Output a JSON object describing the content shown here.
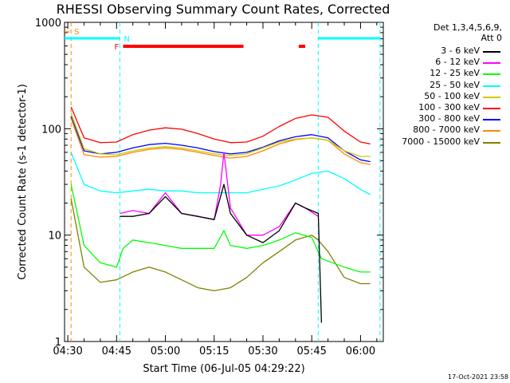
{
  "title": "RHESSI Observing Summary Count Rates, Corrected",
  "timestamp": "17-Oct-2021 23:58",
  "legend_header": [
    "Det 1,3,4,5,6,9,",
    "Att 0"
  ],
  "legend": [
    {
      "label": "3 - 6 keV",
      "color": "#000000"
    },
    {
      "label": "6 - 12 keV",
      "color": "#ff00ff"
    },
    {
      "label": "12 - 25 keV",
      "color": "#00ff00"
    },
    {
      "label": "25 - 50 keV",
      "color": "#00ffff"
    },
    {
      "label": "50 - 100 keV",
      "color": "#cccc00"
    },
    {
      "label": "100 - 300 keV",
      "color": "#ff0000"
    },
    {
      "label": "300 - 800 keV",
      "color": "#0000ff"
    },
    {
      "label": "800 - 7000 keV",
      "color": "#ff8800"
    },
    {
      "label": "7000 - 15000 keV",
      "color": "#808000"
    }
  ],
  "chart_data": {
    "type": "line",
    "title": "RHESSI Observing Summary Count Rates, Corrected",
    "xlabel": "Start Time (06-Jul-05 04:29:22)",
    "ylabel": "Corrected Count Rate (s-1 detector-1)",
    "yscale": "log",
    "ylim": [
      1,
      1000
    ],
    "xlim": [
      "04:29",
      "06:07"
    ],
    "x_ticks": [
      "04:30",
      "04:45",
      "05:00",
      "05:15",
      "05:30",
      "05:45",
      "06:00"
    ],
    "y_ticks": [
      "1",
      "10",
      "100",
      "1000"
    ],
    "annotations": {
      "S": {
        "label": "S",
        "color": "#ff8800",
        "time": "04:31"
      },
      "N": {
        "label": "N",
        "color": "#00ffff",
        "intervals": [
          [
            "04:29",
            "04:46"
          ],
          [
            "05:47",
            "06:06"
          ]
        ]
      },
      "F": {
        "label": "F",
        "color": "#ff0000",
        "intervals": [
          [
            "04:47",
            "05:24"
          ],
          [
            "05:41",
            "05:43"
          ]
        ]
      }
    },
    "series": [
      {
        "name": "3 - 6 keV",
        "color": "#000000",
        "x": [
          "04:46",
          "04:50",
          "04:55",
          "05:00",
          "05:05",
          "05:10",
          "05:15",
          "05:18",
          "05:20",
          "05:25",
          "05:30",
          "05:35",
          "05:40",
          "05:43",
          "05:47",
          "05:48"
        ],
        "y": [
          15,
          15,
          16,
          23,
          16,
          15,
          14,
          30,
          16,
          10,
          8.5,
          11,
          20,
          18,
          16,
          1.5
        ]
      },
      {
        "name": "6 - 12 keV",
        "color": "#ff00ff",
        "x": [
          "04:46",
          "04:50",
          "04:55",
          "05:00",
          "05:05",
          "05:10",
          "05:15",
          "05:17",
          "05:18",
          "05:20",
          "05:25",
          "05:30",
          "05:35",
          "05:40",
          "05:43",
          "05:47"
        ],
        "y": [
          16,
          17,
          16,
          25,
          16,
          15,
          14,
          30,
          60,
          18,
          10,
          10,
          12,
          20,
          18,
          15
        ]
      },
      {
        "name": "12 - 25 keV",
        "color": "#00ff00",
        "x": [
          "04:31",
          "04:35",
          "04:40",
          "04:45",
          "04:47",
          "04:50",
          "04:55",
          "05:00",
          "05:05",
          "05:10",
          "05:15",
          "05:18",
          "05:20",
          "05:25",
          "05:30",
          "05:35",
          "05:40",
          "05:45",
          "05:48",
          "05:55",
          "06:00",
          "06:03"
        ],
        "y": [
          30,
          8,
          5.5,
          5,
          7.5,
          9,
          8.5,
          8,
          7.5,
          7.5,
          7.5,
          11,
          8,
          7.5,
          8,
          9,
          10.5,
          9.5,
          6,
          5,
          4.5,
          4.5
        ]
      },
      {
        "name": "25 - 50 keV",
        "color": "#00ffff",
        "x": [
          "04:31",
          "04:35",
          "04:40",
          "04:45",
          "04:50",
          "04:55",
          "05:00",
          "05:05",
          "05:10",
          "05:15",
          "05:20",
          "05:25",
          "05:30",
          "05:35",
          "05:40",
          "05:45",
          "05:50",
          "05:55",
          "06:00",
          "06:03"
        ],
        "y": [
          60,
          30,
          26,
          25,
          26,
          27,
          26,
          26,
          25,
          25,
          25,
          25,
          27,
          29,
          33,
          38,
          40,
          34,
          27,
          24
        ]
      },
      {
        "name": "50 - 100 keV",
        "color": "#cccc00",
        "x": [
          "04:31",
          "04:35",
          "04:40",
          "04:45",
          "04:50",
          "04:55",
          "05:00",
          "05:05",
          "05:10",
          "05:15",
          "05:20",
          "05:25",
          "05:30",
          "05:35",
          "05:40",
          "05:45",
          "05:50",
          "05:55",
          "06:00",
          "06:03"
        ],
        "y": [
          140,
          65,
          58,
          57,
          62,
          66,
          68,
          66,
          62,
          58,
          56,
          58,
          66,
          75,
          80,
          82,
          78,
          62,
          55,
          55
        ]
      },
      {
        "name": "100 - 300 keV",
        "color": "#ff0000",
        "x": [
          "04:31",
          "04:35",
          "04:40",
          "04:45",
          "04:50",
          "04:55",
          "05:00",
          "05:05",
          "05:10",
          "05:15",
          "05:20",
          "05:25",
          "05:30",
          "05:35",
          "05:40",
          "05:45",
          "05:50",
          "05:55",
          "06:00",
          "06:03"
        ],
        "y": [
          160,
          82,
          74,
          75,
          88,
          97,
          102,
          99,
          90,
          80,
          74,
          75,
          85,
          105,
          125,
          135,
          128,
          95,
          75,
          72
        ]
      },
      {
        "name": "300 - 800 keV",
        "color": "#0000ff",
        "x": [
          "04:31",
          "04:35",
          "04:40",
          "04:45",
          "04:50",
          "04:55",
          "05:00",
          "05:05",
          "05:10",
          "05:15",
          "05:20",
          "05:25",
          "05:30",
          "05:35",
          "05:40",
          "05:45",
          "05:50",
          "05:55",
          "06:00",
          "06:03"
        ],
        "y": [
          130,
          62,
          58,
          60,
          66,
          71,
          73,
          70,
          66,
          61,
          58,
          60,
          67,
          77,
          84,
          88,
          82,
          62,
          51,
          49
        ]
      },
      {
        "name": "800 - 7000 keV",
        "color": "#ff8800",
        "x": [
          "04:31",
          "04:35",
          "04:40",
          "04:45",
          "04:50",
          "04:55",
          "05:00",
          "05:05",
          "05:10",
          "05:15",
          "05:20",
          "05:25",
          "05:30",
          "05:35",
          "05:40",
          "05:45",
          "05:50",
          "05:55",
          "06:00",
          "06:03"
        ],
        "y": [
          125,
          57,
          54,
          55,
          60,
          64,
          66,
          64,
          60,
          56,
          53,
          55,
          62,
          72,
          79,
          82,
          78,
          58,
          48,
          46
        ]
      },
      {
        "name": "7000 - 15000 keV",
        "color": "#808000",
        "x": [
          "04:31",
          "04:35",
          "04:40",
          "04:45",
          "04:50",
          "04:55",
          "05:00",
          "05:05",
          "05:10",
          "05:15",
          "05:20",
          "05:25",
          "05:30",
          "05:35",
          "05:40",
          "05:45",
          "05:47",
          "05:50",
          "05:55",
          "06:00",
          "06:03"
        ],
        "y": [
          22,
          5,
          3.6,
          3.8,
          4.5,
          5,
          4.5,
          3.8,
          3.2,
          3,
          3.2,
          4,
          5.5,
          7,
          9,
          10,
          9,
          7,
          4,
          3.5,
          3.5
        ]
      }
    ]
  }
}
